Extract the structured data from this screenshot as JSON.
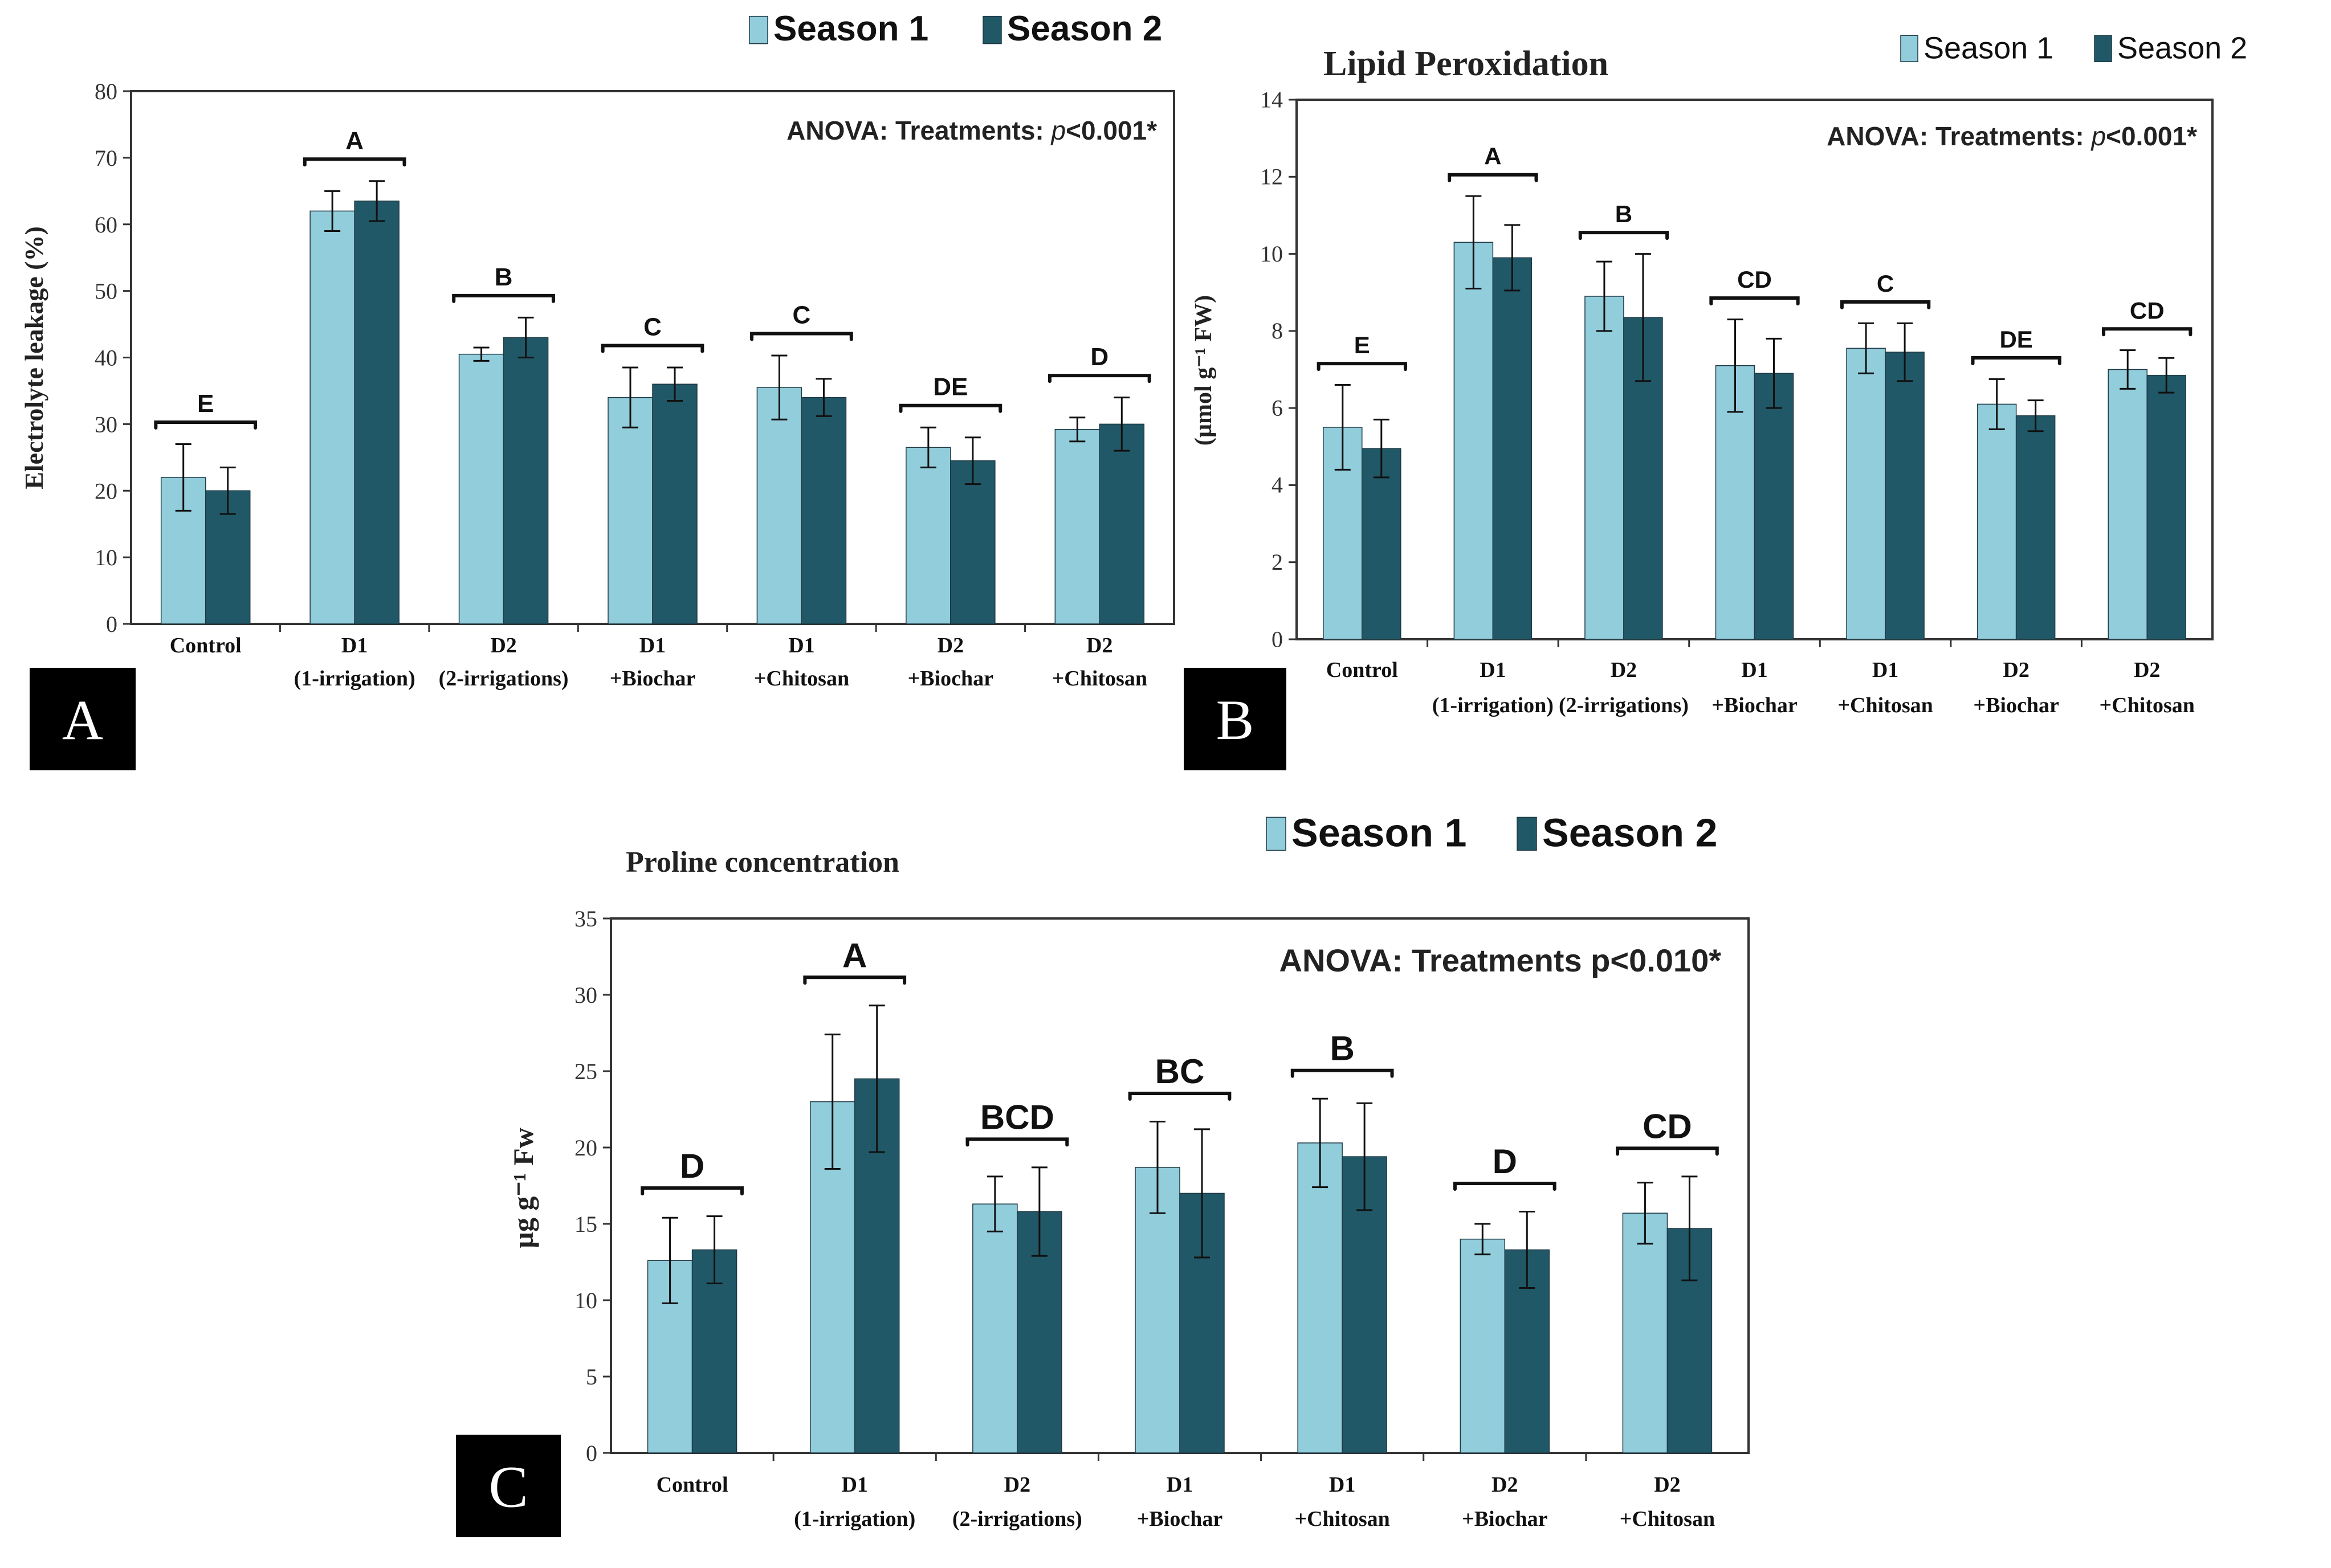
{
  "colors": {
    "season1": "#92CDDC",
    "season2": "#215867",
    "bar_edge": "#1f3a44",
    "axis": "#333333",
    "label_bg": "#000000"
  },
  "chart_data": [
    {
      "panel": "A",
      "type": "bar",
      "title": "",
      "ylabel": "Electrolyte leakage (%)",
      "anova_prefix": "ANOVA: Treatments: ",
      "anova_p": "p",
      "anova_suffix": "<0.001*",
      "ylim": [
        0,
        80
      ],
      "yticks": [
        0,
        10,
        20,
        30,
        40,
        50,
        60,
        70,
        80
      ],
      "categories": [
        [
          "Control"
        ],
        [
          "D1",
          "(1-irrigation)"
        ],
        [
          "D2",
          "(2-irrigations)"
        ],
        [
          "D1",
          "+Biochar"
        ],
        [
          "D1",
          "+Chitosan"
        ],
        [
          "D2",
          "+Biochar"
        ],
        [
          "D2",
          "+Chitosan"
        ]
      ],
      "legend": [
        "Season 1",
        "Season 2"
      ],
      "series": [
        {
          "name": "Season 1",
          "values": [
            22,
            62,
            40.5,
            34,
            35.5,
            26.5,
            29.2
          ],
          "errors": [
            5,
            3,
            1,
            4.5,
            4.8,
            3,
            1.8
          ]
        },
        {
          "name": "Season 2",
          "values": [
            20,
            63.5,
            43,
            36,
            34,
            24.5,
            30
          ],
          "errors": [
            3.5,
            3,
            3,
            2.5,
            2.8,
            3.5,
            4
          ]
        }
      ],
      "letters": [
        "E",
        "A",
        "B",
        "C",
        "C",
        "DE",
        "D"
      ]
    },
    {
      "panel": "B",
      "type": "bar",
      "title": "Lipid Peroxidation",
      "ylabel": "(µmol g⁻¹ FW)",
      "anova_prefix": "ANOVA: Treatments: ",
      "anova_p": "p",
      "anova_suffix": "<0.001*",
      "ylim": [
        0,
        14
      ],
      "yticks": [
        0,
        2,
        4,
        6,
        8,
        10,
        12,
        14
      ],
      "categories": [
        [
          "Control"
        ],
        [
          "D1",
          "(1-irrigation)"
        ],
        [
          "D2",
          "(2-irrigations)"
        ],
        [
          "D1",
          "+Biochar"
        ],
        [
          "D1",
          "+Chitosan"
        ],
        [
          "D2",
          "+Biochar"
        ],
        [
          "D2",
          "+Chitosan"
        ]
      ],
      "legend": [
        "Season 1",
        "Season 2"
      ],
      "series": [
        {
          "name": "Season 1",
          "values": [
            5.5,
            10.3,
            8.9,
            7.1,
            7.55,
            6.1,
            7.0
          ],
          "errors": [
            1.1,
            1.2,
            0.9,
            1.2,
            0.65,
            0.65,
            0.5
          ]
        },
        {
          "name": "Season 2",
          "values": [
            4.95,
            9.9,
            8.35,
            6.9,
            7.45,
            5.8,
            6.85
          ],
          "errors": [
            0.75,
            0.85,
            1.65,
            0.9,
            0.75,
            0.4,
            0.45
          ]
        }
      ],
      "letters": [
        "E",
        "A",
        "B",
        "CD",
        "C",
        "DE",
        "CD"
      ]
    },
    {
      "panel": "C",
      "type": "bar",
      "title": "Proline concentration",
      "ylabel": "µg g⁻¹ Fw",
      "anova_prefix": "ANOVA: Treatments p<0.010*",
      "anova_p": "",
      "anova_suffix": "",
      "ylim": [
        0,
        35
      ],
      "yticks": [
        0,
        5,
        10,
        15,
        20,
        25,
        30,
        35
      ],
      "categories": [
        [
          "Control"
        ],
        [
          "D1",
          "(1-irrigation)"
        ],
        [
          "D2",
          "(2-irrigations)"
        ],
        [
          "D1",
          "+Biochar"
        ],
        [
          "D1",
          "+Chitosan"
        ],
        [
          "D2",
          "+Biochar"
        ],
        [
          "D2",
          "+Chitosan"
        ]
      ],
      "legend": [
        "Season 1",
        "Season 2"
      ],
      "series": [
        {
          "name": "Season 1",
          "values": [
            12.6,
            23,
            16.3,
            18.7,
            20.3,
            14,
            15.7
          ],
          "errors": [
            2.8,
            4.4,
            1.8,
            3,
            2.9,
            1,
            2
          ]
        },
        {
          "name": "Season 2",
          "values": [
            13.3,
            24.5,
            15.8,
            17,
            19.4,
            13.3,
            14.7
          ],
          "errors": [
            2.2,
            4.8,
            2.9,
            4.2,
            3.5,
            2.5,
            3.4
          ]
        }
      ],
      "letters": [
        "D",
        "A",
        "BCD",
        "BC",
        "B",
        "D",
        "CD"
      ]
    }
  ]
}
